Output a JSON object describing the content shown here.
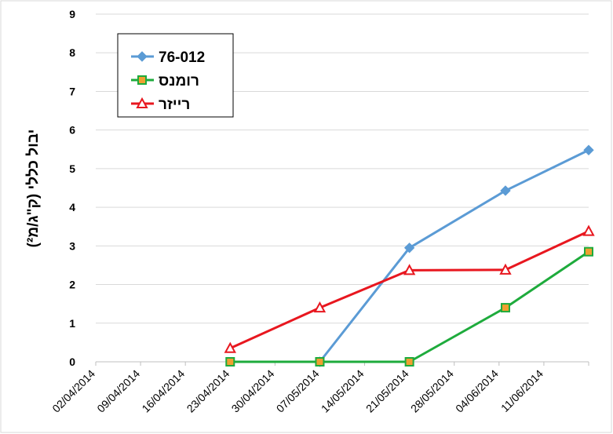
{
  "chart_data": {
    "type": "line",
    "ylabel": "יבול כללי (ק\"ג/מ²)",
    "ylim": [
      0,
      9
    ],
    "yticks": [
      "0",
      "1",
      "2",
      "3",
      "4",
      "5",
      "6",
      "7",
      "8",
      "9"
    ],
    "x_axis_type": "date",
    "xlim": [
      "02/04/2014",
      "18/06/2014"
    ],
    "xticks": [
      "02/04/2014",
      "09/04/2014",
      "16/04/2014",
      "23/04/2014",
      "30/04/2014",
      "07/05/2014",
      "14/05/2014",
      "21/05/2014",
      "28/05/2014",
      "04/06/2014",
      "11/06/2014"
    ],
    "grid": "horizontal",
    "legend_position": "top-left",
    "series": [
      {
        "name": "76-012",
        "color": "#5B9BD5",
        "marker": "diamond",
        "points": [
          {
            "x": "07/05/2014",
            "y": 0
          },
          {
            "x": "21/05/2014",
            "y": 2.95
          },
          {
            "x": "05/06/2014",
            "y": 4.43
          },
          {
            "x": "18/06/2014",
            "y": 5.48
          }
        ]
      },
      {
        "name": "רומנס",
        "color": "#1EAB3C",
        "marker": "square",
        "points": [
          {
            "x": "23/04/2014",
            "y": 0
          },
          {
            "x": "07/05/2014",
            "y": 0
          },
          {
            "x": "21/05/2014",
            "y": 0
          },
          {
            "x": "05/06/2014",
            "y": 1.4
          },
          {
            "x": "18/06/2014",
            "y": 2.85
          }
        ]
      },
      {
        "name": "רייזר",
        "color": "#E8171F",
        "marker": "triangle",
        "points": [
          {
            "x": "23/04/2014",
            "y": 0.35
          },
          {
            "x": "07/05/2014",
            "y": 1.4
          },
          {
            "x": "21/05/2014",
            "y": 2.37
          },
          {
            "x": "05/06/2014",
            "y": 2.38
          },
          {
            "x": "18/06/2014",
            "y": 3.38
          }
        ]
      }
    ]
  }
}
